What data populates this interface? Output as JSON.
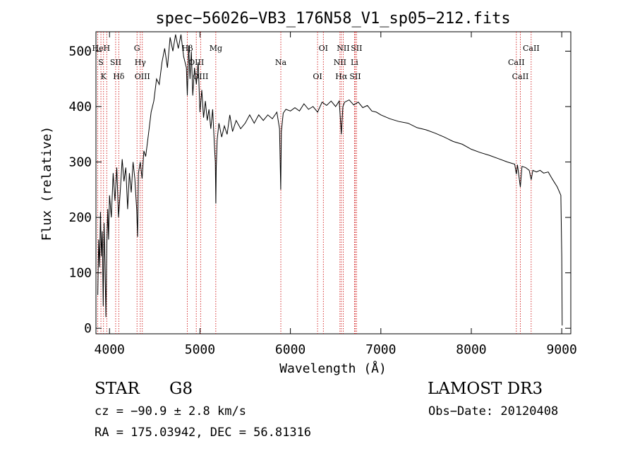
{
  "chart_data": {
    "type": "line",
    "title": "spec−56026−VB3_176N58_V1_sp05−212.fits",
    "xlabel": "Wavelength (Å)",
    "ylabel": "Flux (relative)",
    "xlim": [
      3850,
      9100
    ],
    "ylim": [
      -10,
      535
    ],
    "x_ticks": [
      4000,
      5000,
      6000,
      7000,
      8000,
      9000
    ],
    "y_ticks": [
      0,
      100,
      200,
      300,
      400,
      500
    ],
    "grid": false,
    "series": [
      {
        "name": "flux",
        "points": [
          [
            3870,
            60
          ],
          [
            3880,
            160
          ],
          [
            3890,
            110
          ],
          [
            3900,
            210
          ],
          [
            3910,
            130
          ],
          [
            3920,
            175
          ],
          [
            3930,
            40
          ],
          [
            3940,
            190
          ],
          [
            3950,
            120
          ],
          [
            3960,
            20
          ],
          [
            3970,
            150
          ],
          [
            3980,
            215
          ],
          [
            3990,
            160
          ],
          [
            4000,
            240
          ],
          [
            4020,
            200
          ],
          [
            4040,
            280
          ],
          [
            4060,
            230
          ],
          [
            4080,
            290
          ],
          [
            4100,
            200
          ],
          [
            4120,
            250
          ],
          [
            4140,
            305
          ],
          [
            4160,
            265
          ],
          [
            4180,
            290
          ],
          [
            4200,
            215
          ],
          [
            4220,
            280
          ],
          [
            4240,
            245
          ],
          [
            4260,
            300
          ],
          [
            4280,
            270
          ],
          [
            4300,
            215
          ],
          [
            4310,
            165
          ],
          [
            4320,
            280
          ],
          [
            4340,
            300
          ],
          [
            4360,
            270
          ],
          [
            4380,
            320
          ],
          [
            4400,
            310
          ],
          [
            4430,
            350
          ],
          [
            4460,
            390
          ],
          [
            4490,
            410
          ],
          [
            4520,
            450
          ],
          [
            4550,
            440
          ],
          [
            4580,
            480
          ],
          [
            4610,
            505
          ],
          [
            4640,
            470
          ],
          [
            4670,
            525
          ],
          [
            4700,
            500
          ],
          [
            4730,
            530
          ],
          [
            4760,
            505
          ],
          [
            4790,
            530
          ],
          [
            4820,
            490
          ],
          [
            4850,
            470
          ],
          [
            4860,
            420
          ],
          [
            4875,
            510
          ],
          [
            4890,
            450
          ],
          [
            4905,
            500
          ],
          [
            4920,
            420
          ],
          [
            4940,
            470
          ],
          [
            4960,
            440
          ],
          [
            4980,
            480
          ],
          [
            5000,
            390
          ],
          [
            5020,
            430
          ],
          [
            5040,
            380
          ],
          [
            5060,
            410
          ],
          [
            5080,
            375
          ],
          [
            5100,
            395
          ],
          [
            5120,
            360
          ],
          [
            5140,
            395
          ],
          [
            5160,
            330
          ],
          [
            5170,
            300
          ],
          [
            5175,
            225
          ],
          [
            5180,
            290
          ],
          [
            5190,
            340
          ],
          [
            5210,
            370
          ],
          [
            5240,
            345
          ],
          [
            5270,
            365
          ],
          [
            5300,
            350
          ],
          [
            5330,
            385
          ],
          [
            5360,
            355
          ],
          [
            5400,
            375
          ],
          [
            5450,
            360
          ],
          [
            5500,
            370
          ],
          [
            5550,
            385
          ],
          [
            5600,
            370
          ],
          [
            5650,
            385
          ],
          [
            5700,
            375
          ],
          [
            5750,
            385
          ],
          [
            5800,
            378
          ],
          [
            5850,
            390
          ],
          [
            5880,
            360
          ],
          [
            5893,
            250
          ],
          [
            5900,
            355
          ],
          [
            5920,
            388
          ],
          [
            5950,
            395
          ],
          [
            6000,
            392
          ],
          [
            6050,
            398
          ],
          [
            6100,
            392
          ],
          [
            6150,
            405
          ],
          [
            6200,
            395
          ],
          [
            6250,
            400
          ],
          [
            6300,
            390
          ],
          [
            6350,
            408
          ],
          [
            6400,
            402
          ],
          [
            6450,
            410
          ],
          [
            6500,
            400
          ],
          [
            6540,
            410
          ],
          [
            6563,
            350
          ],
          [
            6580,
            400
          ],
          [
            6600,
            408
          ],
          [
            6650,
            412
          ],
          [
            6700,
            403
          ],
          [
            6750,
            408
          ],
          [
            6800,
            398
          ],
          [
            6850,
            402
          ],
          [
            6900,
            392
          ],
          [
            6950,
            390
          ],
          [
            7000,
            385
          ],
          [
            7100,
            378
          ],
          [
            7200,
            373
          ],
          [
            7300,
            370
          ],
          [
            7400,
            362
          ],
          [
            7500,
            358
          ],
          [
            7600,
            352
          ],
          [
            7700,
            345
          ],
          [
            7800,
            337
          ],
          [
            7900,
            332
          ],
          [
            8000,
            323
          ],
          [
            8100,
            317
          ],
          [
            8200,
            312
          ],
          [
            8300,
            306
          ],
          [
            8400,
            300
          ],
          [
            8480,
            296
          ],
          [
            8498,
            278
          ],
          [
            8510,
            295
          ],
          [
            8542,
            255
          ],
          [
            8560,
            292
          ],
          [
            8600,
            290
          ],
          [
            8640,
            285
          ],
          [
            8662,
            268
          ],
          [
            8680,
            285
          ],
          [
            8720,
            282
          ],
          [
            8760,
            285
          ],
          [
            8800,
            280
          ],
          [
            8850,
            282
          ],
          [
            8900,
            268
          ],
          [
            8950,
            255
          ],
          [
            8990,
            240
          ],
          [
            9000,
            130
          ],
          [
            9005,
            5
          ]
        ]
      }
    ],
    "line_markers": [
      {
        "wavelength": 3870,
        "label": "He"
      },
      {
        "wavelength": 3905,
        "label": "S"
      },
      {
        "wavelength": 3934,
        "label": "K"
      },
      {
        "wavelength": 3969,
        "label": "H"
      },
      {
        "wavelength": 4068,
        "label": "SII"
      },
      {
        "wavelength": 4102,
        "label": "Hδ"
      },
      {
        "wavelength": 4304,
        "label": "G"
      },
      {
        "wavelength": 4340,
        "label": "Hγ"
      },
      {
        "wavelength": 4363,
        "label": "OIII"
      },
      {
        "wavelength": 4861,
        "label": "Hβ"
      },
      {
        "wavelength": 4959,
        "label": "OIII"
      },
      {
        "wavelength": 5007,
        "label": "OIII"
      },
      {
        "wavelength": 5175,
        "label": "Mg"
      },
      {
        "wavelength": 5894,
        "label": "Na"
      },
      {
        "wavelength": 6300,
        "label": "OI"
      },
      {
        "wavelength": 6364,
        "label": "OI"
      },
      {
        "wavelength": 6548,
        "label": "NII"
      },
      {
        "wavelength": 6563,
        "label": "Hα"
      },
      {
        "wavelength": 6584,
        "label": "NII"
      },
      {
        "wavelength": 6708,
        "label": "Li"
      },
      {
        "wavelength": 6717,
        "label": "SII"
      },
      {
        "wavelength": 6731,
        "label": "SII"
      },
      {
        "wavelength": 8498,
        "label": "CaII"
      },
      {
        "wavelength": 8542,
        "label": "CaII"
      },
      {
        "wavelength": 8662,
        "label": "CaII"
      }
    ],
    "marker_color": "#cc0000"
  },
  "info": {
    "object_class": "STAR",
    "subclass": "G8",
    "survey": "LAMOST DR3",
    "redshift": "cz = −90.9 ± 2.8 km/s",
    "obs_date": "Obs−Date: 20120408",
    "coords": "RA = 175.03942, DEC =  56.81316"
  }
}
